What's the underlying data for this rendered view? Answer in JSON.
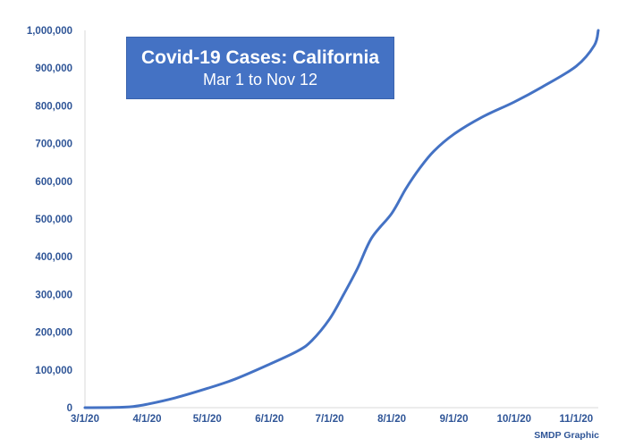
{
  "chart_data": {
    "type": "line",
    "title": "Covid-19 Cases: California",
    "subtitle": "Mar 1 to Nov 12",
    "credit": "SMDP Graphic",
    "xlabel": "",
    "ylabel": "",
    "grid": false,
    "x_ticks": [
      "3/1/20",
      "4/1/20",
      "5/1/20",
      "6/1/20",
      "7/1/20",
      "8/1/20",
      "9/1/20",
      "10/1/20",
      "11/1/20"
    ],
    "y_ticks": [
      "0",
      "100,000",
      "200,000",
      "300,000",
      "400,000",
      "500,000",
      "600,000",
      "700,000",
      "800,000",
      "900,000",
      "1,000,000"
    ],
    "ylim": [
      0,
      1000000
    ],
    "xlim": [
      "2020-03-01",
      "2020-11-12"
    ],
    "line_color": "#4472c4",
    "series": [
      {
        "x": [
          "2020-03-01",
          "2020-03-15",
          "2020-03-25",
          "2020-04-01",
          "2020-04-15",
          "2020-05-01",
          "2020-05-15",
          "2020-06-01",
          "2020-06-15",
          "2020-06-22",
          "2020-07-01",
          "2020-07-08",
          "2020-07-15",
          "2020-07-22",
          "2020-08-01",
          "2020-08-08",
          "2020-08-15",
          "2020-08-22",
          "2020-09-01",
          "2020-09-15",
          "2020-10-01",
          "2020-10-15",
          "2020-11-01",
          "2020-11-10",
          "2020-11-12"
        ],
        "values": [
          0,
          500,
          3000,
          9000,
          26000,
          51000,
          76000,
          115000,
          150000,
          177000,
          235000,
          300000,
          370000,
          450000,
          515000,
          580000,
          635000,
          680000,
          725000,
          770000,
          810000,
          850000,
          905000,
          960000,
          1000000
        ]
      }
    ]
  }
}
